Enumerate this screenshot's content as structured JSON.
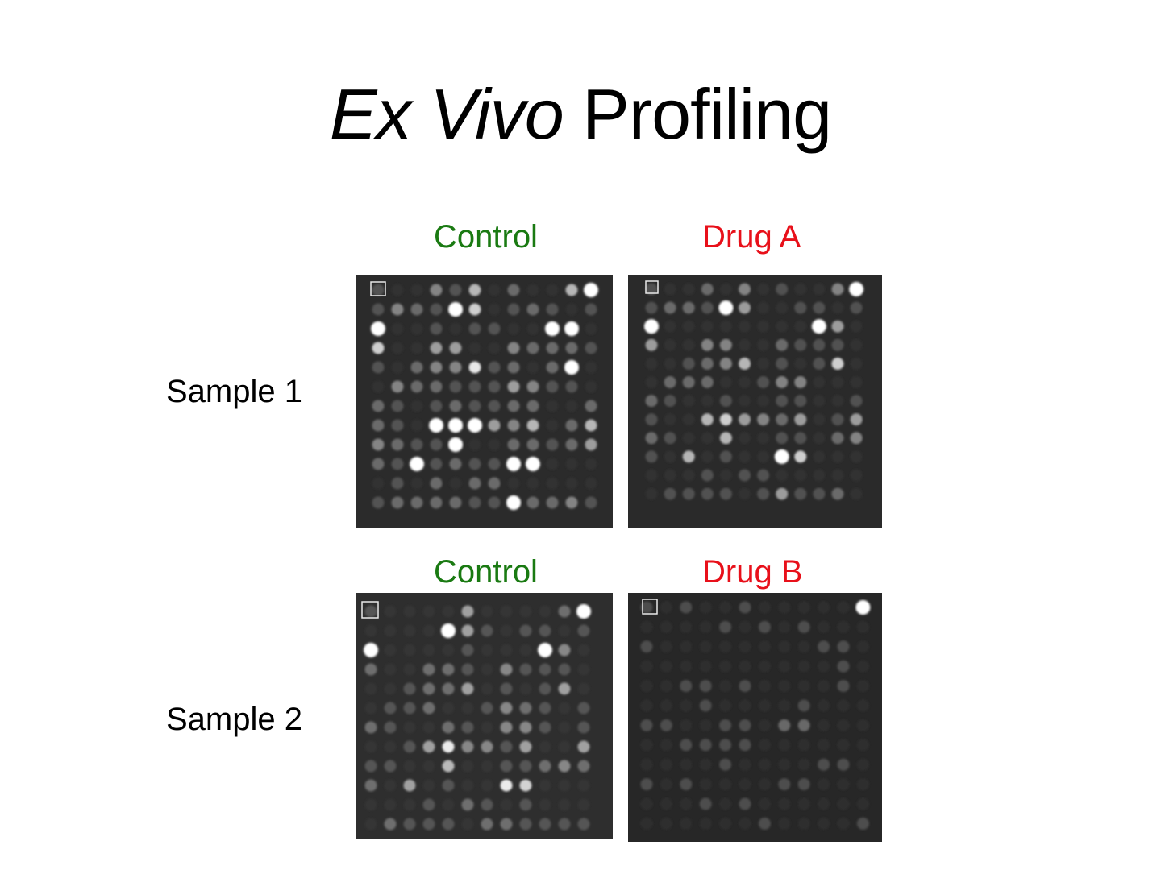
{
  "slide": {
    "title_italic": "Ex Vivo",
    "title_rest": "Profiling"
  },
  "rows": [
    {
      "label": "Sample 1",
      "control_label": "Control",
      "treatment_label": "Drug A"
    },
    {
      "label": "Sample 2",
      "control_label": "Control",
      "treatment_label": "Drug B"
    }
  ],
  "colors": {
    "control": "#1a7a12",
    "treatment": "#e8101a"
  }
}
